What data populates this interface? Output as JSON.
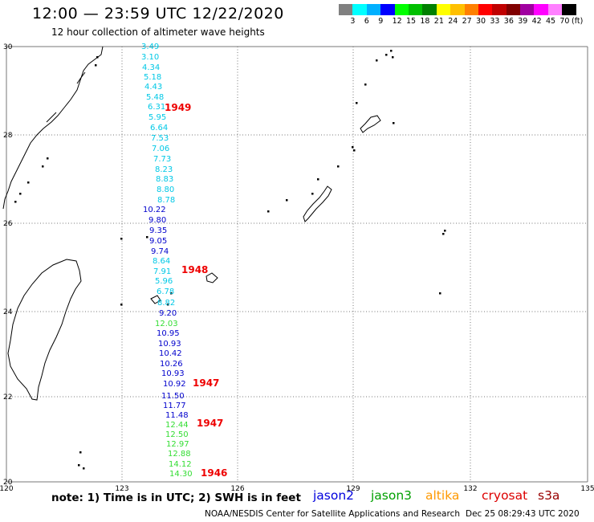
{
  "title": "12:00 — 23:59 UTC 12/22/2020",
  "subtitle": "12 hour collection of altimeter wave heights",
  "color_scale": {
    "unit": "(ft)",
    "swatches": [
      "#808080",
      "#00ffff",
      "#00b0ff",
      "#0000ff",
      "#00ff00",
      "#00c000",
      "#008000",
      "#ffff00",
      "#ffc000",
      "#ff8000",
      "#ff0000",
      "#c00000",
      "#800000",
      "#a000a0",
      "#ff00ff",
      "#ff80ff",
      "#000000"
    ],
    "labels": [
      "3",
      "6",
      "9",
      "12",
      "15",
      "18",
      "21",
      "24",
      "27",
      "30",
      "33",
      "36",
      "39",
      "42",
      "45",
      "70"
    ]
  },
  "axes": {
    "lon_ticks": [
      "120",
      "123",
      "126",
      "129",
      "132",
      "135"
    ],
    "lat_ticks": [
      "30",
      "28",
      "26",
      "24",
      "22",
      "20"
    ]
  },
  "track_colors": {
    "cyan": "#00c8e6",
    "blue": "#0000cc",
    "green": "#33dd33"
  },
  "readings": [
    {
      "v": "3.49",
      "c": "cyan"
    },
    {
      "v": "3.10",
      "c": "cyan"
    },
    {
      "v": "4.34",
      "c": "cyan"
    },
    {
      "v": "5.18",
      "c": "cyan"
    },
    {
      "v": "4.43",
      "c": "cyan"
    },
    {
      "v": "5.48",
      "c": "cyan"
    },
    {
      "v": "6.31",
      "c": "cyan"
    },
    {
      "v": "5.95",
      "c": "cyan"
    },
    {
      "v": "6.64",
      "c": "cyan"
    },
    {
      "v": "7.53",
      "c": "cyan"
    },
    {
      "v": "7.06",
      "c": "cyan"
    },
    {
      "v": "7.73",
      "c": "cyan"
    },
    {
      "v": "8.23",
      "c": "cyan"
    },
    {
      "v": "8.83",
      "c": "cyan"
    },
    {
      "v": "8.80",
      "c": "cyan"
    },
    {
      "v": "8.78",
      "c": "cyan"
    },
    {
      "v": "10.22",
      "c": "blue"
    },
    {
      "v": "9.80",
      "c": "blue"
    },
    {
      "v": "9.35",
      "c": "blue"
    },
    {
      "v": "9.05",
      "c": "blue"
    },
    {
      "v": "9.74",
      "c": "blue"
    },
    {
      "v": "8.64",
      "c": "cyan"
    },
    {
      "v": "7.91",
      "c": "cyan"
    },
    {
      "v": "5.96",
      "c": "cyan"
    },
    {
      "v": "6.78",
      "c": "cyan"
    },
    {
      "v": "8.82",
      "c": "cyan"
    },
    {
      "v": "9.20",
      "c": "blue"
    },
    {
      "v": "12.03",
      "c": "green"
    },
    {
      "v": "10.95",
      "c": "blue"
    },
    {
      "v": "10.93",
      "c": "blue"
    },
    {
      "v": "10.42",
      "c": "blue"
    },
    {
      "v": "10.26",
      "c": "blue"
    },
    {
      "v": "10.93",
      "c": "blue"
    },
    {
      "v": "10.92",
      "c": "blue"
    },
    {
      "v": "11.50",
      "c": "blue"
    },
    {
      "v": "11.77",
      "c": "blue"
    },
    {
      "v": "11.48",
      "c": "blue"
    },
    {
      "v": "12.44",
      "c": "green"
    },
    {
      "v": "12.50",
      "c": "green"
    },
    {
      "v": "12.97",
      "c": "green"
    },
    {
      "v": "12.88",
      "c": "green"
    },
    {
      "v": "14.12",
      "c": "green"
    },
    {
      "v": "14.30",
      "c": "green"
    }
  ],
  "time_labels": [
    "1949",
    "1948",
    "1947",
    "1947",
    "1946"
  ],
  "note": "note: 1) Time is in UTC; 2) SWH is in feet",
  "satellites": [
    {
      "name": "jason2",
      "color": "#0000dd"
    },
    {
      "name": "jason3",
      "color": "#00a000"
    },
    {
      "name": "altika",
      "color": "#ff9900"
    },
    {
      "name": "cryosat",
      "color": "#dd0000"
    },
    {
      "name": "s3a",
      "color": "#990000"
    }
  ],
  "credit": "NOAA/NESDIS Center for Satellite Applications and Research",
  "timestamp": "Dec 25 08:29:43 UTC 2020",
  "label_color": "#ee0000"
}
